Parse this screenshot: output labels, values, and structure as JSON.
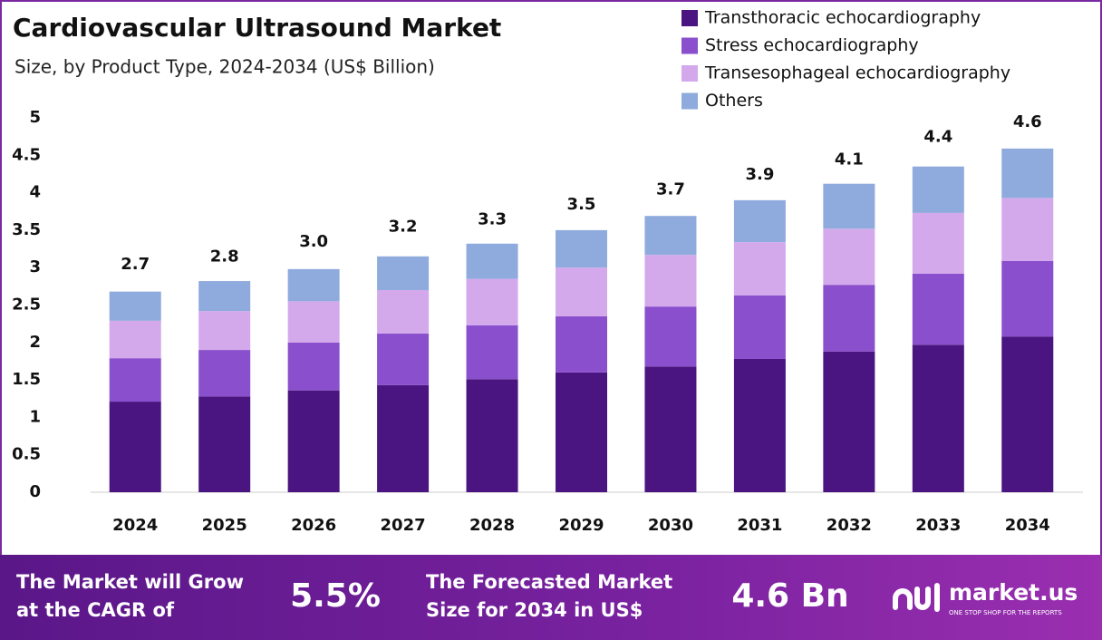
{
  "chart_data": {
    "type": "stacked-bar",
    "title": "Cardiovascular Ultrasound Market",
    "subtitle": "Size, by Product Type, 2024-2034 (US$ Billion)",
    "categories": [
      "2024",
      "2025",
      "2026",
      "2027",
      "2028",
      "2029",
      "2030",
      "2031",
      "2032",
      "2033",
      "2034"
    ],
    "series": [
      {
        "name": "Transthoracic echocardiography",
        "color": "#4a1580",
        "values": [
          1.21,
          1.28,
          1.36,
          1.43,
          1.51,
          1.6,
          1.68,
          1.78,
          1.88,
          1.97,
          2.08
        ]
      },
      {
        "name": "Stress echocardiography",
        "color": "#8a4fcc",
        "values": [
          0.58,
          0.62,
          0.64,
          0.69,
          0.72,
          0.75,
          0.8,
          0.85,
          0.89,
          0.95,
          1.01
        ]
      },
      {
        "name": "Transesophageal echocardiography",
        "color": "#d3a9ec",
        "values": [
          0.5,
          0.52,
          0.55,
          0.58,
          0.62,
          0.65,
          0.69,
          0.71,
          0.75,
          0.81,
          0.84
        ]
      },
      {
        "name": "Others",
        "color": "#8faadc",
        "values": [
          0.39,
          0.4,
          0.43,
          0.45,
          0.47,
          0.5,
          0.52,
          0.56,
          0.6,
          0.62,
          0.66
        ]
      }
    ],
    "totals": {
      "values": [
        2.7,
        2.8,
        3.0,
        3.2,
        3.3,
        3.5,
        3.7,
        3.9,
        4.1,
        4.4,
        4.6
      ],
      "value_labels": [
        "2.7",
        "2.8",
        "3.0",
        "3.2",
        "3.3",
        "3.5",
        "3.7",
        "3.9",
        "4.1",
        "4.4",
        "4.6"
      ]
    },
    "ylim": [
      0,
      5
    ],
    "yticks": [
      0,
      0.5,
      1,
      1.5,
      2,
      2.5,
      3,
      3.5,
      4,
      4.5,
      5
    ],
    "grid": false,
    "legend": "top-right"
  },
  "footer": {
    "cagr_text": [
      "The Market will Grow",
      "at the CAGR of"
    ],
    "cagr_value": "5.5%",
    "forecast_text": [
      "The Forecasted Market",
      "Size for 2034 in US$"
    ],
    "forecast_value": "4.6 Bn",
    "logo": "market.us",
    "tagline": "ONE STOP SHOP FOR THE REPORTS"
  }
}
